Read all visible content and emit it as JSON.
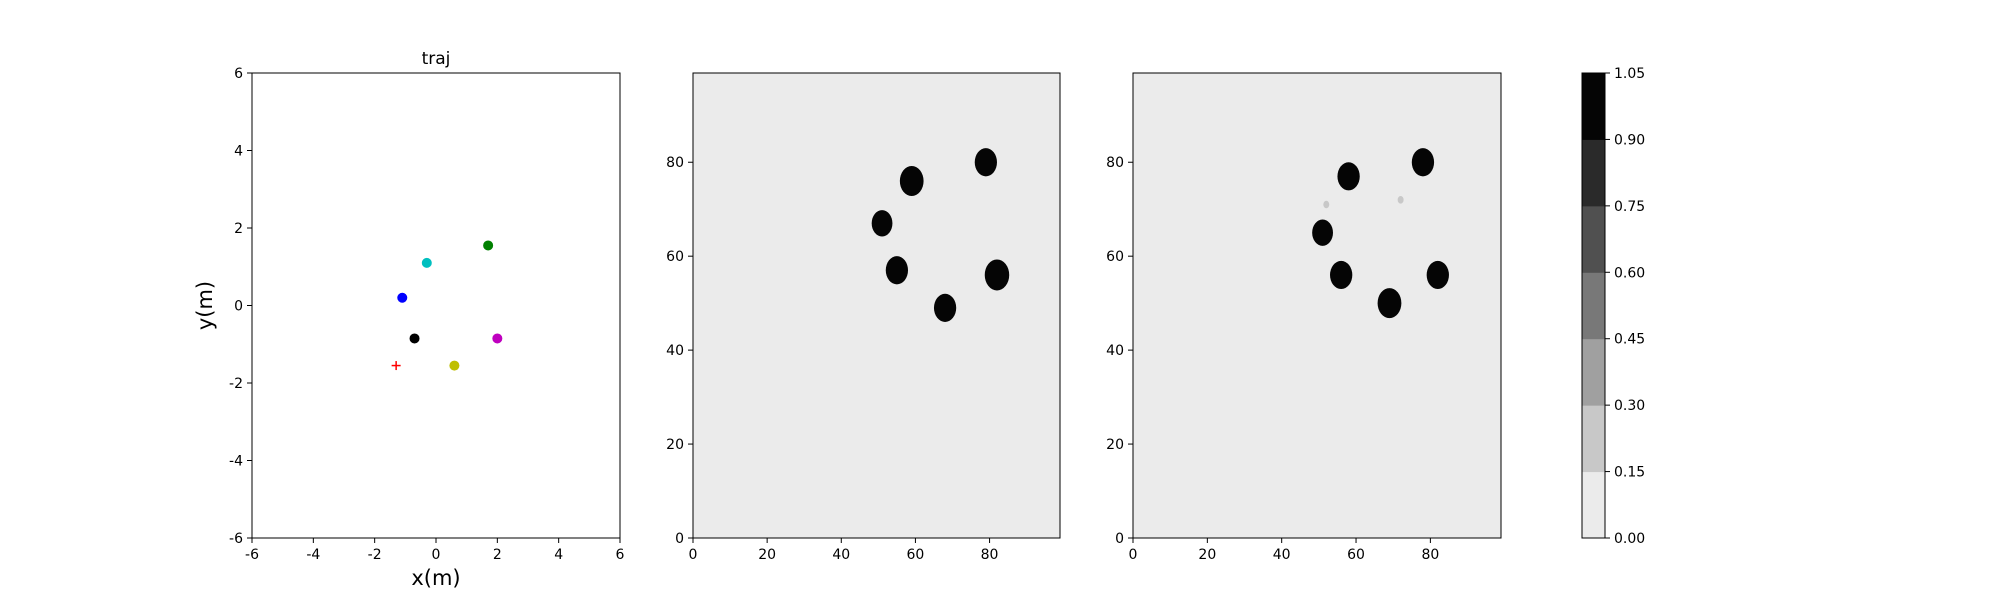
{
  "chart_data": [
    {
      "type": "scatter",
      "title": "traj",
      "xlabel": "x(m)",
      "ylabel": "y(m)",
      "xlim": [
        -6,
        6
      ],
      "ylim": [
        -6,
        6
      ],
      "xticks": [
        -6,
        -4,
        -2,
        0,
        2,
        4,
        6
      ],
      "yticks": [
        -6,
        -4,
        -2,
        0,
        2,
        4,
        6
      ],
      "grid": false,
      "points": [
        {
          "x": 1.7,
          "y": 1.55,
          "color": "#008000",
          "marker": "circle"
        },
        {
          "x": -0.3,
          "y": 1.1,
          "color": "#00bfbf",
          "marker": "circle"
        },
        {
          "x": -1.1,
          "y": 0.2,
          "color": "#0000ff",
          "marker": "circle"
        },
        {
          "x": -0.7,
          "y": -0.85,
          "color": "#000000",
          "marker": "circle"
        },
        {
          "x": 2.0,
          "y": -0.85,
          "color": "#bf00bf",
          "marker": "circle"
        },
        {
          "x": 0.6,
          "y": -1.55,
          "color": "#bfbf00",
          "marker": "circle"
        },
        {
          "x": -1.3,
          "y": -1.55,
          "color": "#ff0000",
          "marker": "plus"
        }
      ]
    },
    {
      "type": "heatmap",
      "title": "",
      "xlim": [
        0,
        99
      ],
      "ylim": [
        0,
        99
      ],
      "xticks": [
        0,
        20,
        40,
        60,
        80
      ],
      "yticks": [
        0,
        20,
        40,
        60,
        80
      ],
      "background_value": 0.05,
      "blobs": [
        {
          "x": 59,
          "y": 76,
          "r": 3.2,
          "value": 1.0
        },
        {
          "x": 79,
          "y": 80,
          "r": 3.0,
          "value": 1.0
        },
        {
          "x": 51,
          "y": 67,
          "r": 2.8,
          "value": 1.0
        },
        {
          "x": 55,
          "y": 57,
          "r": 3.0,
          "value": 1.0
        },
        {
          "x": 82,
          "y": 56,
          "r": 3.3,
          "value": 1.0
        },
        {
          "x": 68,
          "y": 49,
          "r": 3.0,
          "value": 1.0
        }
      ]
    },
    {
      "type": "heatmap",
      "title": "",
      "xlim": [
        0,
        99
      ],
      "ylim": [
        0,
        99
      ],
      "xticks": [
        0,
        20,
        40,
        60,
        80
      ],
      "yticks": [
        0,
        20,
        40,
        60,
        80
      ],
      "background_value": 0.05,
      "blobs": [
        {
          "x": 58,
          "y": 77,
          "r": 3.0,
          "value": 1.0
        },
        {
          "x": 78,
          "y": 80,
          "r": 3.0,
          "value": 1.0
        },
        {
          "x": 51,
          "y": 65,
          "r": 2.8,
          "value": 1.0
        },
        {
          "x": 56,
          "y": 56,
          "r": 3.0,
          "value": 1.0
        },
        {
          "x": 82,
          "y": 56,
          "r": 3.0,
          "value": 1.0
        },
        {
          "x": 69,
          "y": 50,
          "r": 3.2,
          "value": 1.0
        },
        {
          "x": 52,
          "y": 71,
          "r": 0.8,
          "value": 0.2
        },
        {
          "x": 72,
          "y": 72,
          "r": 0.8,
          "value": 0.2
        }
      ]
    }
  ],
  "colorbar": {
    "levels": [
      0.0,
      0.15,
      0.3,
      0.45,
      0.6,
      0.75,
      0.9,
      1.05
    ],
    "labels": [
      "0.00",
      "0.15",
      "0.30",
      "0.45",
      "0.60",
      "0.75",
      "0.90",
      "1.05"
    ],
    "colors": [
      "#ebebeb",
      "#c8c8c8",
      "#a0a0a0",
      "#787878",
      "#505050",
      "#2a2a2a",
      "#050505"
    ]
  }
}
